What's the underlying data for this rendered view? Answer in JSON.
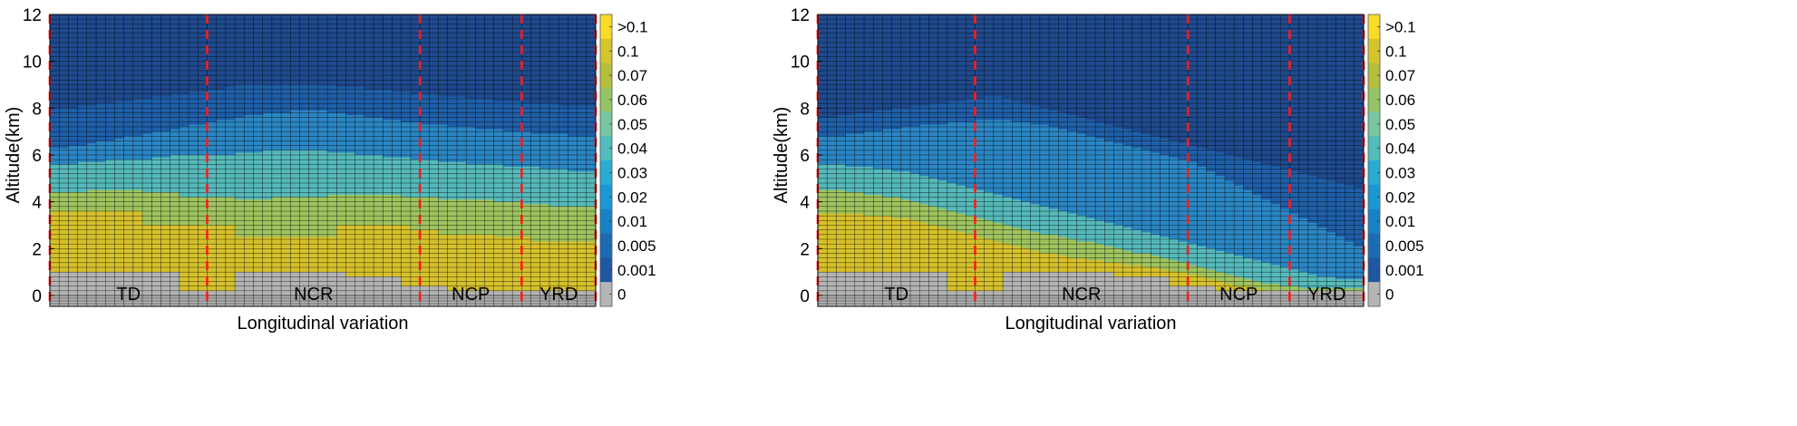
{
  "chart_data": [
    {
      "type": "heatmap",
      "xlabel": "Longitudinal variation",
      "ylabel": "Altitude(km)",
      "ylim": [
        0,
        12
      ],
      "yticks": [
        "0",
        "2",
        "4",
        "6",
        "8",
        "10",
        "12"
      ],
      "n_columns": 59,
      "regions": [
        {
          "name": "TD",
          "start_col": 0,
          "end_col": 17
        },
        {
          "name": "NCR",
          "start_col": 17,
          "end_col": 40
        },
        {
          "name": "NCP",
          "start_col": 40,
          "end_col": 51
        },
        {
          "name": "YRD",
          "start_col": 51,
          "end_col": 59
        }
      ],
      "terrain_km": [
        1.0,
        1.0,
        1.0,
        1.0,
        1.0,
        1.0,
        1.0,
        1.0,
        1.0,
        1.0,
        1.0,
        1.0,
        1.0,
        1.0,
        0.2,
        0.2,
        0.2,
        0.2,
        0.2,
        0.2,
        1.0,
        1.0,
        1.0,
        1.0,
        1.0,
        1.0,
        1.0,
        1.0,
        1.0,
        1.0,
        1.0,
        1.0,
        0.8,
        0.8,
        0.8,
        0.8,
        0.8,
        0.8,
        0.4,
        0.4,
        0.4,
        0.4,
        0.4,
        0.2,
        0.2,
        0.2,
        0.2,
        0.2,
        0.2,
        0.2,
        0.2,
        0.2,
        0.2,
        0.2,
        0.2,
        0.2,
        0.2,
        0.2,
        0.2
      ],
      "yellow_top_km": [
        3.6,
        3.6,
        3.6,
        3.6,
        3.6,
        3.6,
        3.6,
        3.6,
        3.6,
        3.6,
        3.0,
        3.0,
        3.0,
        3.0,
        3.0,
        3.0,
        3.0,
        3.0,
        3.0,
        3.0,
        2.5,
        2.5,
        2.5,
        2.5,
        2.5,
        2.5,
        2.5,
        2.5,
        2.5,
        2.5,
        2.5,
        3.0,
        3.0,
        3.0,
        3.0,
        3.0,
        3.0,
        3.0,
        3.0,
        2.8,
        2.8,
        2.8,
        2.6,
        2.6,
        2.6,
        2.6,
        2.6,
        2.6,
        2.5,
        2.5,
        2.5,
        2.5,
        2.3,
        2.3,
        2.3,
        2.3,
        2.3,
        2.3,
        2.3
      ],
      "green_top_km": [
        4.4,
        4.4,
        4.4,
        4.4,
        4.5,
        4.5,
        4.5,
        4.5,
        4.5,
        4.5,
        4.4,
        4.4,
        4.4,
        4.4,
        4.2,
        4.2,
        4.2,
        4.2,
        4.2,
        4.2,
        4.1,
        4.1,
        4.1,
        4.1,
        4.2,
        4.2,
        4.2,
        4.2,
        4.2,
        4.2,
        4.3,
        4.3,
        4.3,
        4.3,
        4.3,
        4.3,
        4.3,
        4.3,
        4.2,
        4.2,
        4.2,
        4.2,
        4.1,
        4.1,
        4.1,
        4.1,
        4.1,
        4.1,
        4.0,
        4.0,
        4.0,
        3.9,
        3.9,
        3.9,
        3.8,
        3.8,
        3.8,
        3.8,
        3.8
      ],
      "teal_top_km": [
        5.6,
        5.6,
        5.6,
        5.7,
        5.7,
        5.7,
        5.8,
        5.8,
        5.8,
        5.8,
        5.8,
        5.9,
        5.9,
        6.0,
        6.0,
        6.0,
        6.0,
        6.0,
        6.0,
        6.0,
        6.1,
        6.1,
        6.1,
        6.2,
        6.2,
        6.2,
        6.2,
        6.2,
        6.2,
        6.2,
        6.1,
        6.1,
        6.1,
        6.0,
        6.0,
        6.0,
        5.9,
        5.9,
        5.9,
        5.8,
        5.8,
        5.8,
        5.7,
        5.7,
        5.7,
        5.6,
        5.6,
        5.6,
        5.6,
        5.5,
        5.5,
        5.5,
        5.5,
        5.4,
        5.4,
        5.4,
        5.3,
        5.3,
        5.3
      ],
      "mid_top_km": [
        6.3,
        6.3,
        6.4,
        6.4,
        6.5,
        6.6,
        6.6,
        6.7,
        6.8,
        6.8,
        6.9,
        7.0,
        7.0,
        7.1,
        7.2,
        7.3,
        7.3,
        7.4,
        7.5,
        7.5,
        7.6,
        7.7,
        7.7,
        7.8,
        7.8,
        7.8,
        7.9,
        7.9,
        7.9,
        7.9,
        7.8,
        7.8,
        7.7,
        7.7,
        7.6,
        7.6,
        7.5,
        7.5,
        7.4,
        7.4,
        7.3,
        7.3,
        7.3,
        7.2,
        7.2,
        7.2,
        7.1,
        7.1,
        7.1,
        7.0,
        7.0,
        7.0,
        6.9,
        6.9,
        6.9,
        6.9,
        6.8,
        6.8,
        6.8
      ],
      "light_top_km": [
        8.0,
        8.0,
        8.0,
        8.1,
        8.1,
        8.2,
        8.2,
        8.3,
        8.3,
        8.4,
        8.4,
        8.5,
        8.5,
        8.6,
        8.6,
        8.7,
        8.7,
        8.8,
        8.8,
        8.9,
        9.0,
        9.0,
        9.0,
        9.0,
        9.0,
        9.0,
        9.0,
        9.0,
        9.0,
        9.0,
        9.0,
        8.9,
        8.9,
        8.9,
        8.8,
        8.8,
        8.8,
        8.7,
        8.7,
        8.6,
        8.6,
        8.6,
        8.5,
        8.5,
        8.5,
        8.4,
        8.4,
        8.4,
        8.3,
        8.3,
        8.3,
        8.2,
        8.2,
        8.2,
        8.2,
        8.1,
        8.1,
        8.1,
        8.1
      ],
      "colorbar": {
        "labels": [
          ">0.1",
          "0.1",
          "0.07",
          "0.06",
          "0.05",
          "0.04",
          "0.03",
          "0.02",
          "0.01",
          "0.005",
          "0.001",
          "0"
        ],
        "colors": [
          "#f9dc2a",
          "#d6c42d",
          "#b5be3b",
          "#95c468",
          "#78c6a1",
          "#52bbbc",
          "#29acd3",
          "#1a98d6",
          "#1682c6",
          "#1d6bb5",
          "#1f58a1",
          "#b5b5b5"
        ]
      }
    },
    {
      "type": "heatmap",
      "xlabel": "Longitudinal variation",
      "ylabel": "Altitude(km)",
      "ylim": [
        0,
        12
      ],
      "yticks": [
        "0",
        "2",
        "4",
        "6",
        "8",
        "10",
        "12"
      ],
      "n_columns": 59,
      "regions": [
        {
          "name": "TD",
          "start_col": 0,
          "end_col": 17
        },
        {
          "name": "NCR",
          "start_col": 17,
          "end_col": 40
        },
        {
          "name": "NCP",
          "start_col": 40,
          "end_col": 51
        },
        {
          "name": "YRD",
          "start_col": 51,
          "end_col": 59
        }
      ],
      "terrain_km": [
        1.0,
        1.0,
        1.0,
        1.0,
        1.0,
        1.0,
        1.0,
        1.0,
        1.0,
        1.0,
        1.0,
        1.0,
        1.0,
        1.0,
        0.2,
        0.2,
        0.2,
        0.2,
        0.2,
        0.2,
        1.0,
        1.0,
        1.0,
        1.0,
        1.0,
        1.0,
        1.0,
        1.0,
        1.0,
        1.0,
        1.0,
        1.0,
        0.8,
        0.8,
        0.8,
        0.8,
        0.8,
        0.8,
        0.4,
        0.4,
        0.4,
        0.4,
        0.4,
        0.2,
        0.2,
        0.2,
        0.2,
        0.2,
        0.2,
        0.2,
        0.2,
        0.2,
        0.2,
        0.2,
        0.2,
        0.2,
        0.2,
        0.2,
        0.2
      ],
      "yellow_top_km": [
        3.5,
        3.5,
        3.5,
        3.5,
        3.5,
        3.4,
        3.4,
        3.4,
        3.3,
        3.3,
        3.2,
        3.1,
        3.0,
        2.9,
        2.8,
        2.7,
        2.6,
        2.5,
        2.4,
        2.3,
        2.2,
        2.1,
        2.0,
        1.9,
        1.8,
        1.8,
        1.7,
        1.6,
        1.6,
        1.5,
        1.5,
        1.4,
        1.4,
        1.3,
        1.3,
        1.2,
        1.2,
        1.1,
        1.0,
        1.0,
        0.9,
        0.8,
        0.7,
        0.6,
        0.5,
        0.4,
        0.4,
        0.3,
        0.2,
        0.2,
        0.2,
        0.2,
        0.2,
        0.2,
        0.2,
        0.2,
        0.2,
        0.2,
        0.2
      ],
      "green_top_km": [
        4.5,
        4.5,
        4.5,
        4.4,
        4.4,
        4.3,
        4.3,
        4.2,
        4.2,
        4.1,
        4.0,
        3.9,
        3.8,
        3.7,
        3.6,
        3.5,
        3.4,
        3.3,
        3.2,
        3.1,
        3.0,
        2.9,
        2.8,
        2.7,
        2.6,
        2.6,
        2.5,
        2.4,
        2.3,
        2.3,
        2.2,
        2.1,
        2.0,
        1.9,
        1.8,
        1.8,
        1.7,
        1.6,
        1.5,
        1.4,
        1.3,
        1.2,
        1.1,
        1.0,
        0.9,
        0.8,
        0.7,
        0.6,
        0.5,
        0.5,
        0.4,
        0.4,
        0.3,
        0.3,
        0.3,
        0.3,
        0.3,
        0.3,
        0.3
      ],
      "teal_top_km": [
        5.6,
        5.6,
        5.6,
        5.5,
        5.5,
        5.5,
        5.4,
        5.4,
        5.3,
        5.3,
        5.2,
        5.1,
        5.0,
        4.9,
        4.8,
        4.7,
        4.6,
        4.5,
        4.4,
        4.3,
        4.2,
        4.1,
        4.0,
        3.9,
        3.8,
        3.7,
        3.6,
        3.5,
        3.4,
        3.3,
        3.2,
        3.1,
        3.0,
        2.9,
        2.8,
        2.7,
        2.6,
        2.5,
        2.4,
        2.3,
        2.2,
        2.1,
        2.0,
        1.9,
        1.8,
        1.7,
        1.6,
        1.5,
        1.4,
        1.3,
        1.2,
        1.1,
        1.0,
        0.9,
        0.8,
        0.8,
        0.7,
        0.7,
        0.7
      ],
      "mid_top_km": [
        6.8,
        6.8,
        6.8,
        6.9,
        6.9,
        7.0,
        7.0,
        7.1,
        7.1,
        7.2,
        7.2,
        7.3,
        7.3,
        7.3,
        7.4,
        7.4,
        7.4,
        7.5,
        7.5,
        7.5,
        7.5,
        7.4,
        7.4,
        7.3,
        7.3,
        7.2,
        7.1,
        7.0,
        6.9,
        6.8,
        6.7,
        6.6,
        6.5,
        6.4,
        6.3,
        6.2,
        6.1,
        6.0,
        5.9,
        5.8,
        5.7,
        5.5,
        5.3,
        5.1,
        4.9,
        4.7,
        4.5,
        4.3,
        4.1,
        3.9,
        3.7,
        3.5,
        3.3,
        3.1,
        2.9,
        2.7,
        2.5,
        2.3,
        2.1
      ],
      "light_top_km": [
        7.6,
        7.6,
        7.7,
        7.7,
        7.8,
        7.8,
        7.9,
        7.9,
        8.0,
        8.0,
        8.1,
        8.1,
        8.2,
        8.2,
        8.3,
        8.3,
        8.4,
        8.4,
        8.5,
        8.5,
        8.4,
        8.3,
        8.2,
        8.1,
        8.0,
        7.9,
        7.8,
        7.7,
        7.6,
        7.5,
        7.4,
        7.3,
        7.2,
        7.1,
        7.0,
        6.9,
        6.8,
        6.7,
        6.6,
        6.5,
        6.4,
        6.3,
        6.2,
        6.1,
        6.0,
        5.9,
        5.8,
        5.7,
        5.6,
        5.5,
        5.4,
        5.3,
        5.2,
        5.1,
        5.0,
        4.9,
        4.8,
        4.7,
        4.6
      ],
      "colorbar": {
        "labels": [
          ">0.1",
          "0.1",
          "0.07",
          "0.06",
          "0.05",
          "0.04",
          "0.03",
          "0.02",
          "0.01",
          "0.005",
          "0.001",
          "0"
        ],
        "colors": [
          "#f9dc2a",
          "#d6c42d",
          "#b5be3b",
          "#95c468",
          "#78c6a1",
          "#52bbbc",
          "#29acd3",
          "#1a98d6",
          "#1682c6",
          "#1d6bb5",
          "#1f58a1",
          "#b5b5b5"
        ]
      }
    }
  ],
  "colors": {
    "top": "#1f4a8e",
    "light": "#1f5fa8",
    "mid": "#2b86c4",
    "teal": "#56b9ba",
    "green": "#9fc45e",
    "yellow": "#d7c12b",
    "terrain": "#b3b3b3",
    "boundary": "#ff1a1a",
    "grid": "#000000"
  }
}
